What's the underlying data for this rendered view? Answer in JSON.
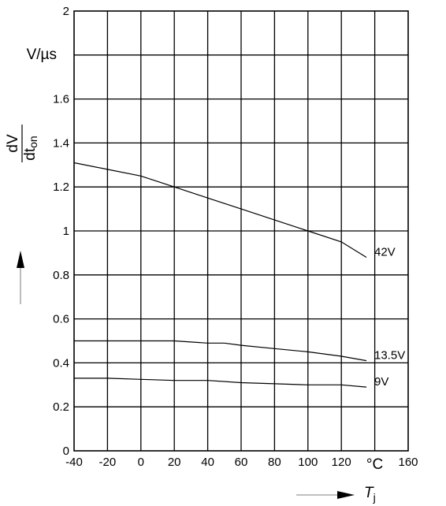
{
  "chart_data": {
    "type": "line",
    "x_ticks": [
      "-40",
      "-20",
      "0",
      "20",
      "40",
      "60",
      "80",
      "100",
      "120",
      "°C",
      "160"
    ],
    "y_ticks": [
      "0",
      "0.2",
      "0.4",
      "0.6",
      "0.8",
      "1",
      "1.2",
      "1.4",
      "1.6",
      "V/µs",
      "2"
    ],
    "xlim": [
      -40,
      160
    ],
    "ylim": [
      0,
      2
    ],
    "grid": true,
    "ylabel": {
      "numerator": "dV",
      "denominator": "dt",
      "sub": "on"
    },
    "xlabel": {
      "symbol": "T",
      "sub": "j"
    },
    "series": [
      {
        "name": "42V",
        "x": [
          -40,
          -20,
          0,
          20,
          40,
          60,
          80,
          100,
          120,
          135
        ],
        "y": [
          1.31,
          1.28,
          1.25,
          1.2,
          1.15,
          1.1,
          1.05,
          1.0,
          0.95,
          0.88
        ]
      },
      {
        "name": "13.5V",
        "x": [
          -40,
          -20,
          0,
          20,
          40,
          50,
          60,
          80,
          100,
          120,
          135
        ],
        "y": [
          0.5,
          0.5,
          0.5,
          0.5,
          0.49,
          0.49,
          0.48,
          0.465,
          0.45,
          0.43,
          0.41
        ]
      },
      {
        "name": "9V",
        "x": [
          -40,
          -20,
          0,
          20,
          40,
          60,
          80,
          100,
          120,
          135
        ],
        "y": [
          0.33,
          0.33,
          0.325,
          0.32,
          0.32,
          0.31,
          0.305,
          0.3,
          0.3,
          0.29
        ]
      }
    ]
  }
}
